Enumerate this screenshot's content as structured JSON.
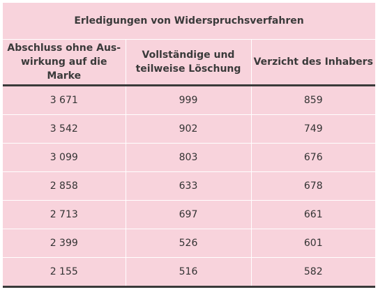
{
  "table": {
    "title": "Erledigungen von Widerspruchsverfahren",
    "columns": [
      "Abschluss ohne Aus-\nwirkung auf die Marke",
      "Vollständige und\nteilweise Löschung",
      "Verzicht des Inhabers"
    ],
    "rows": [
      [
        "3 671",
        "999",
        "859"
      ],
      [
        "3 542",
        "902",
        "749"
      ],
      [
        "3 099",
        "803",
        "676"
      ],
      [
        "2 858",
        "633",
        "678"
      ],
      [
        "2 713",
        "697",
        "661"
      ],
      [
        "2 399",
        "526",
        "601"
      ],
      [
        "2 155",
        "516",
        "582"
      ]
    ]
  },
  "colors": {
    "background": "#f8d3dc",
    "rule": "#3a3a3a",
    "separator": "#ffffff"
  }
}
